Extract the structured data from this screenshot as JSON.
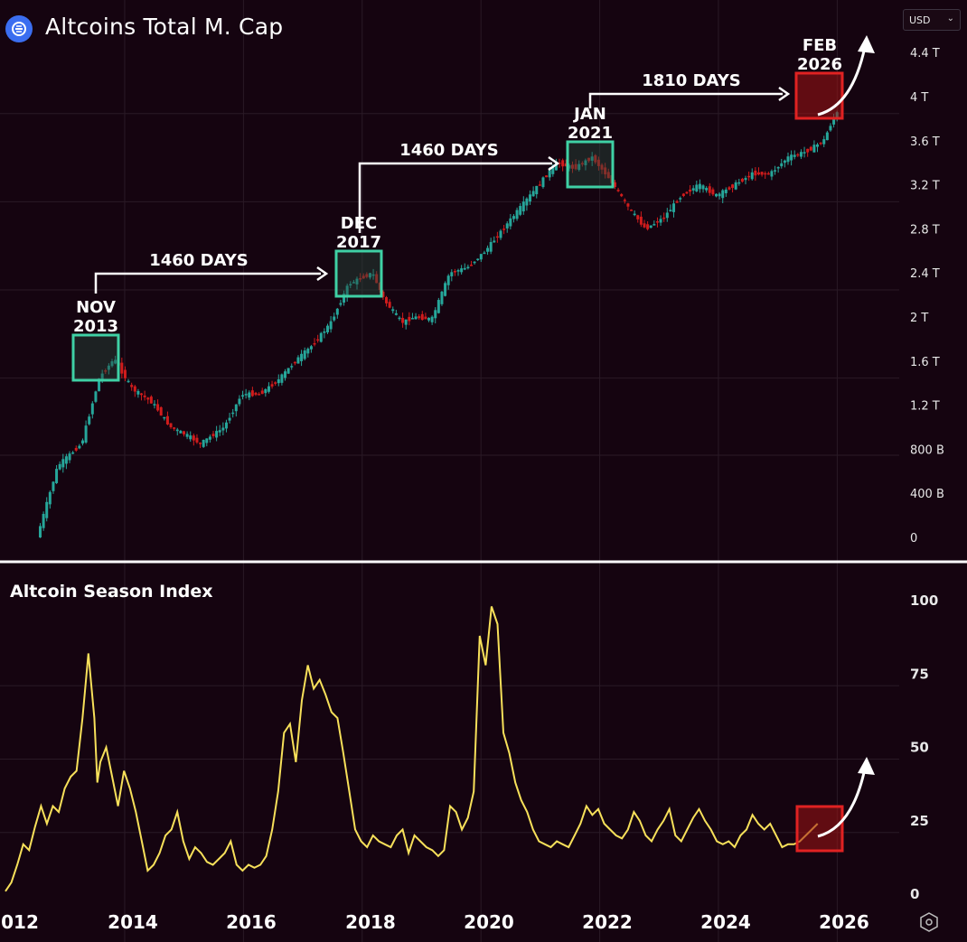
{
  "header": {
    "title": "Altcoins Total M. Cap",
    "logo_icon": "exchange-logo-icon",
    "currency_select": "USD"
  },
  "lower_panel": {
    "title": "Altcoin Season Index"
  },
  "colors": {
    "background": "#150410",
    "bullish": "#26a69a",
    "bearish": "#d11c1c",
    "index_line": "#f7e05a",
    "highlight_green": "#3fd1a5",
    "highlight_red": "#e02222",
    "divider": "#ffffff"
  },
  "chart_data": [
    {
      "type": "candlestick",
      "title": "Altcoins Total M. Cap",
      "x_ticks": [
        "012",
        "2014",
        "2016",
        "2018",
        "2020",
        "2022",
        "2024",
        "2026"
      ],
      "y_ticks": [
        "0",
        "400 B",
        "800 B",
        "1.2 T",
        "1.6 T",
        "2 T",
        "2.4 T",
        "2.8 T",
        "3.2 T",
        "3.6 T",
        "4 T",
        "4.4 T"
      ],
      "y_range_trillions": [
        -0.1,
        4.5
      ],
      "grid": true,
      "approx_trend": {
        "x": [
          2012.25,
          2012.6,
          2013.0,
          2013.3,
          2013.55,
          2013.85,
          2014.2,
          2014.5,
          2014.8,
          2015.0,
          2015.4,
          2015.7,
          2016.0,
          2016.3,
          2016.6,
          2016.9,
          2017.2,
          2017.5,
          2017.9,
          2018.1,
          2018.4,
          2018.6,
          2018.9,
          2019.2,
          2019.5,
          2019.8,
          2020.1,
          2020.4,
          2020.7,
          2021.0,
          2021.3,
          2021.6,
          2021.9,
          2022.2,
          2022.5,
          2022.8,
          2023.1,
          2023.4,
          2023.7,
          2024.0,
          2024.3,
          2024.6,
          2024.9,
          2025.2,
          2025.5,
          2025.7
        ],
        "y": [
          0.0,
          0.65,
          0.85,
          1.45,
          1.62,
          1.35,
          1.22,
          1.0,
          0.92,
          0.85,
          1.0,
          1.3,
          1.3,
          1.42,
          1.6,
          1.75,
          1.95,
          2.3,
          2.4,
          2.15,
          1.95,
          2.0,
          1.98,
          2.4,
          2.45,
          2.6,
          2.8,
          3.0,
          3.2,
          3.4,
          3.35,
          3.45,
          3.25,
          3.0,
          2.8,
          2.9,
          3.1,
          3.2,
          3.1,
          3.2,
          3.3,
          3.3,
          3.45,
          3.5,
          3.6,
          3.85
        ]
      },
      "annotations": [
        {
          "label": "NOV 2013",
          "line1": "NOV",
          "line2": "2013",
          "box": "green"
        },
        {
          "label": "DEC 2017",
          "line1": "DEC",
          "line2": "2017",
          "box": "green"
        },
        {
          "label": "JAN 2021",
          "line1": "JAN",
          "line2": "2021",
          "box": "green"
        },
        {
          "label": "FEB 2026",
          "line1": "FEB",
          "line2": "2026",
          "box": "red"
        }
      ],
      "intervals": [
        "1460 DAYS",
        "1460 DAYS",
        "1810 DAYS"
      ]
    },
    {
      "type": "line",
      "title": "Altcoin Season Index",
      "y_ticks": [
        "0",
        "25",
        "50",
        "75",
        "100"
      ],
      "y_range": [
        -2,
        105
      ],
      "grid": true,
      "series": [
        {
          "x": [
            2012.0,
            2012.1,
            2012.2,
            2012.3,
            2012.4,
            2012.5,
            2012.6,
            2012.7,
            2012.8,
            2012.9,
            2013.0,
            2013.1,
            2013.2,
            2013.3,
            2013.4,
            2013.5,
            2013.55,
            2013.6,
            2013.7,
            2013.8,
            2013.9,
            2014.0,
            2014.1,
            2014.2,
            2014.3,
            2014.4,
            2014.5,
            2014.6,
            2014.7,
            2014.8,
            2014.9,
            2015.0,
            2015.1,
            2015.2,
            2015.3,
            2015.4,
            2015.5,
            2015.6,
            2015.7,
            2015.8,
            2015.9,
            2016.0,
            2016.1,
            2016.2,
            2016.3,
            2016.4,
            2016.5,
            2016.6,
            2016.7,
            2016.8,
            2016.9,
            2017.0,
            2017.1,
            2017.2,
            2017.3,
            2017.4,
            2017.5,
            2017.6,
            2017.7,
            2017.8,
            2017.9,
            2018.0,
            2018.1,
            2018.2,
            2018.3,
            2018.4,
            2018.5,
            2018.6,
            2018.7,
            2018.8,
            2018.9,
            2019.0,
            2019.1,
            2019.2,
            2019.3,
            2019.4,
            2019.5,
            2019.6,
            2019.7,
            2019.8,
            2019.9,
            2020.0,
            2020.1,
            2020.2,
            2020.3,
            2020.4,
            2020.5,
            2020.6,
            2020.7,
            2020.8,
            2020.9,
            2021.0,
            2021.1,
            2021.2,
            2021.3,
            2021.4,
            2021.5,
            2021.6,
            2021.7,
            2021.8,
            2021.9,
            2022.0,
            2022.1,
            2022.2,
            2022.3,
            2022.4,
            2022.5,
            2022.6,
            2022.7,
            2022.8,
            2022.9,
            2023.0,
            2023.1,
            2023.2,
            2023.3,
            2023.4,
            2023.5,
            2023.6,
            2023.7,
            2023.8,
            2023.9,
            2024.0,
            2024.1,
            2024.2,
            2024.3,
            2024.4,
            2024.5,
            2024.6,
            2024.7,
            2024.8,
            2024.9,
            2025.0,
            2025.1,
            2025.2,
            2025.3,
            2025.4,
            2025.5,
            2025.6,
            2025.7
          ],
          "values": [
            1,
            4,
            10,
            17,
            15,
            23,
            30,
            24,
            30,
            28,
            36,
            40,
            42,
            60,
            82,
            60,
            38,
            45,
            50,
            40,
            30,
            42,
            36,
            28,
            18,
            8,
            10,
            14,
            20,
            22,
            28,
            18,
            12,
            16,
            14,
            11,
            10,
            12,
            14,
            18,
            10,
            8,
            10,
            9,
            10,
            13,
            22,
            35,
            55,
            58,
            45,
            66,
            78,
            70,
            73,
            68,
            62,
            60,
            48,
            35,
            22,
            18,
            16,
            20,
            18,
            17,
            16,
            20,
            22,
            14,
            20,
            18,
            16,
            15,
            13,
            15,
            30,
            28,
            22,
            26,
            35,
            88,
            78,
            98,
            92,
            55,
            48,
            38,
            32,
            28,
            22,
            18,
            17,
            16,
            18,
            17,
            16,
            20,
            24,
            30,
            27,
            29,
            24,
            22,
            20,
            19,
            22,
            28,
            25,
            20,
            18,
            22,
            25,
            29,
            20,
            18,
            22,
            26,
            29,
            25,
            22,
            18,
            17,
            18,
            16,
            20,
            22,
            27,
            24,
            22,
            24,
            20,
            16,
            17,
            17,
            18,
            20,
            22,
            24
          ],
          "x_scale_note": ""
        }
      ],
      "annotations": [
        {
          "box": "red"
        }
      ]
    }
  ]
}
